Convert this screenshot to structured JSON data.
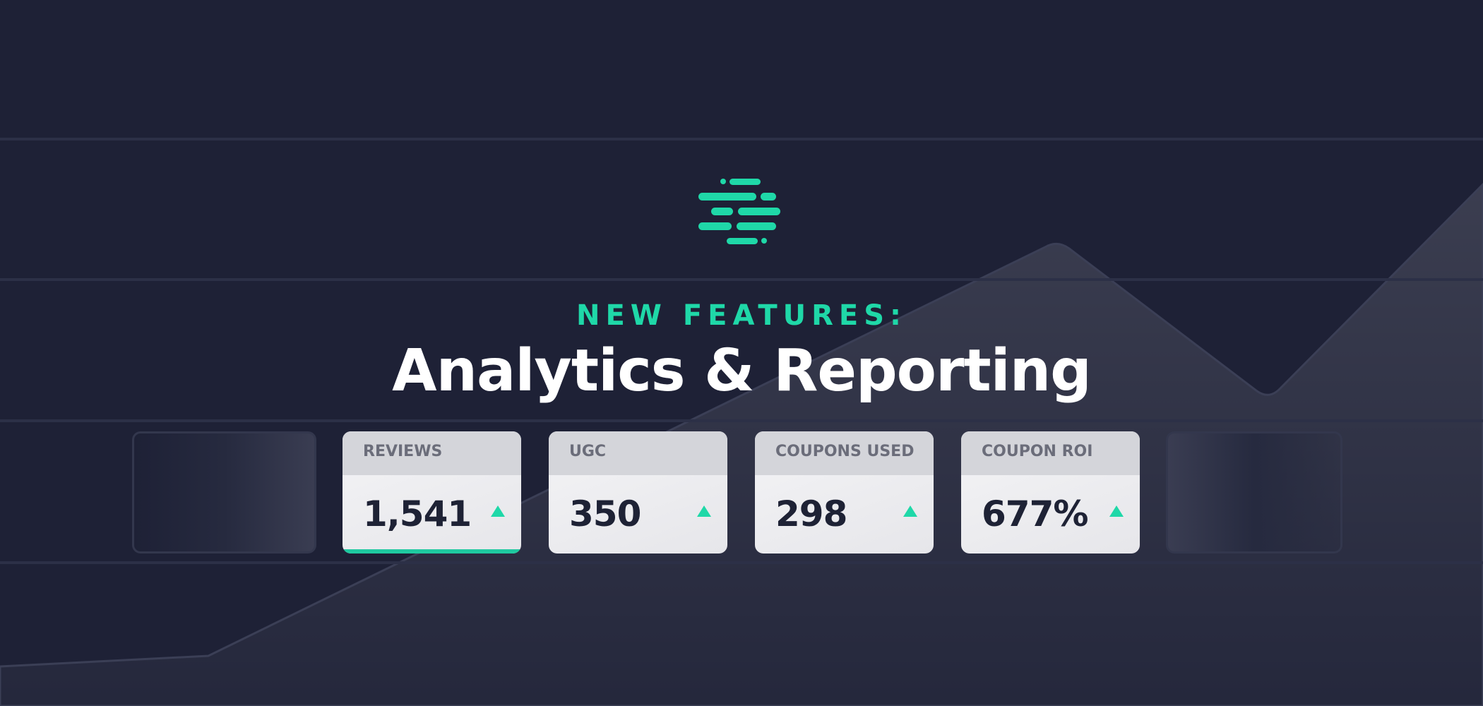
{
  "header": {
    "eyebrow": "NEW FEATURES:",
    "title": "Analytics & Reporting"
  },
  "cards": [
    {
      "label": "REVIEWS",
      "value": "1,541"
    },
    {
      "label": "UGC",
      "value": "350"
    },
    {
      "label": "COUPONS USED",
      "value": "298"
    },
    {
      "label": "COUPON ROI",
      "value": "677%"
    }
  ]
}
